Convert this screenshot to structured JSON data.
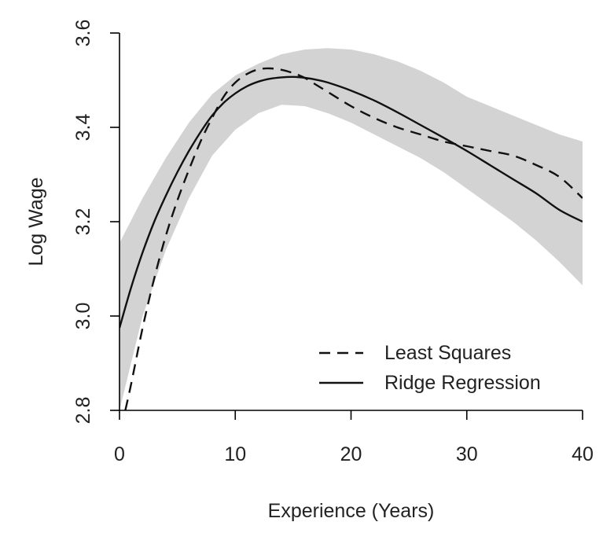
{
  "chart_data": {
    "type": "line",
    "title": "",
    "xlabel": "Experience (Years)",
    "ylabel": "Log Wage",
    "xlim": [
      0,
      40
    ],
    "ylim": [
      2.8,
      3.6
    ],
    "xticks": [
      0,
      10,
      20,
      30,
      40
    ],
    "xtick_labels": [
      "0",
      "10",
      "20",
      "30",
      "40"
    ],
    "yticks": [
      2.8,
      3.0,
      3.2,
      3.4,
      3.6
    ],
    "ytick_labels": [
      "2.8",
      "3.0",
      "3.2",
      "3.4",
      "3.6"
    ],
    "grid": false,
    "legend_position": "bottom-right",
    "band_color": "#d3d3d3",
    "line_color": "#111111",
    "band": {
      "x": [
        0,
        2,
        4,
        6,
        8,
        10,
        12,
        14,
        16,
        18,
        20,
        22,
        24,
        26,
        28,
        30,
        32,
        34,
        36,
        38,
        40
      ],
      "lower": [
        2.8,
        3.0,
        3.14,
        3.25,
        3.34,
        3.395,
        3.43,
        3.448,
        3.445,
        3.43,
        3.41,
        3.385,
        3.36,
        3.335,
        3.305,
        3.27,
        3.235,
        3.2,
        3.16,
        3.115,
        3.065
      ],
      "upper": [
        3.155,
        3.25,
        3.335,
        3.41,
        3.47,
        3.51,
        3.535,
        3.555,
        3.565,
        3.568,
        3.565,
        3.555,
        3.54,
        3.52,
        3.495,
        3.465,
        3.445,
        3.425,
        3.405,
        3.385,
        3.37
      ]
    },
    "series": [
      {
        "name": "Least Squares",
        "style": "dashed",
        "x": [
          0.5,
          1,
          2,
          3,
          4,
          5,
          6,
          7,
          8,
          9,
          10,
          11,
          12,
          13,
          14,
          15,
          16,
          17,
          18,
          20,
          22,
          24,
          26,
          28,
          30,
          32,
          34,
          36,
          38,
          40
        ],
        "y": [
          2.8,
          2.855,
          2.975,
          3.08,
          3.17,
          3.245,
          3.31,
          3.37,
          3.42,
          3.465,
          3.495,
          3.513,
          3.523,
          3.525,
          3.522,
          3.515,
          3.505,
          3.49,
          3.475,
          3.445,
          3.42,
          3.4,
          3.385,
          3.37,
          3.36,
          3.35,
          3.34,
          3.32,
          3.295,
          3.25
        ]
      },
      {
        "name": "Ridge Regression",
        "style": "solid",
        "x": [
          0,
          1,
          2,
          3,
          4,
          5,
          6,
          7,
          8,
          9,
          10,
          11,
          12,
          13,
          14,
          15,
          16,
          17,
          18,
          20,
          22,
          24,
          26,
          28,
          30,
          32,
          34,
          36,
          38,
          40
        ],
        "y": [
          2.975,
          3.06,
          3.135,
          3.2,
          3.255,
          3.305,
          3.35,
          3.39,
          3.425,
          3.452,
          3.472,
          3.487,
          3.497,
          3.503,
          3.506,
          3.507,
          3.505,
          3.501,
          3.495,
          3.478,
          3.457,
          3.432,
          3.405,
          3.378,
          3.35,
          3.32,
          3.29,
          3.26,
          3.225,
          3.2
        ]
      }
    ]
  }
}
